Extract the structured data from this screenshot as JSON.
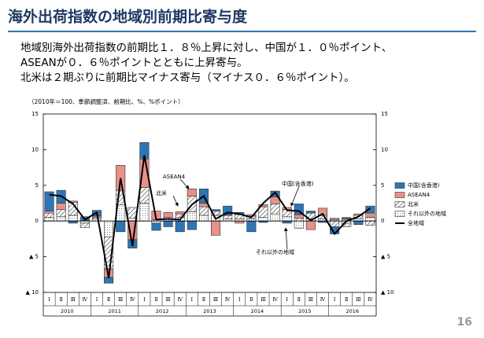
{
  "header": {
    "title": "海外出荷指数の地域別前期比寄与度",
    "lines": [
      "地域別海外出荷指数の前期比１．８％上昇に対し、中国が１．０％ポイント、",
      "ASEANが０．６％ポイントとともに上昇寄与。",
      "北米は２期ぶりに前期比マイナス寄与（マイナス０．６％ポイント）。"
    ]
  },
  "page_number": "16",
  "chart_data": {
    "type": "stacked-bar-line",
    "note": "（2010年＝100、季節調整済、前期比、%、%ポイント）",
    "categories": [
      "Ⅰ",
      "Ⅱ",
      "Ⅲ",
      "Ⅳ",
      "Ⅰ",
      "Ⅱ",
      "Ⅲ",
      "Ⅳ",
      "Ⅰ",
      "Ⅱ",
      "Ⅲ",
      "Ⅳ",
      "Ⅰ",
      "Ⅱ",
      "Ⅲ",
      "Ⅳ",
      "Ⅰ",
      "Ⅱ",
      "Ⅲ",
      "Ⅳ",
      "Ⅰ",
      "Ⅱ",
      "Ⅲ",
      "Ⅳ",
      "Ⅰ",
      "Ⅱ",
      "Ⅲ",
      "Ⅳ"
    ],
    "years": [
      "2010",
      "2011",
      "2012",
      "2013",
      "2014",
      "2015",
      "2016"
    ],
    "series": [
      {
        "name": "中国(含香港)",
        "color": "#2e75b6",
        "values": [
          2.7,
          1.8,
          -0.3,
          0.5,
          0.8,
          -0.8,
          -1.5,
          -1.2,
          2.3,
          -1.0,
          -0.8,
          -1.5,
          -1.2,
          2.0,
          0.2,
          1.2,
          0.3,
          -1.5,
          -0.2,
          0.8,
          -0.3,
          1.5,
          0.3,
          -0.2,
          -1.0,
          0.2,
          -0.5,
          1.0
        ]
      },
      {
        "name": "ASEAN4",
        "color": "#e8908a",
        "values": [
          0.3,
          0.9,
          0.2,
          0.1,
          0.2,
          -1.2,
          3.5,
          -2.6,
          4.0,
          1.2,
          0.7,
          0.3,
          1.0,
          0.5,
          -2.0,
          0.1,
          -0.3,
          0.2,
          0.3,
          1.0,
          0.3,
          0.5,
          -1.2,
          1.0,
          0.2,
          0.3,
          0.2,
          0.6
        ]
      },
      {
        "name": "北米",
        "color": "#ffffff",
        "pattern": "hatch",
        "values": [
          0.6,
          1.0,
          1.8,
          -0.6,
          0.2,
          -4.5,
          2.0,
          1.5,
          2.2,
          0.2,
          0.2,
          0.5,
          2.2,
          1.2,
          0.6,
          0.5,
          0.6,
          0.4,
          1.5,
          1.4,
          1.0,
          0.4,
          0.8,
          0.5,
          -0.8,
          -0.5,
          0.5,
          -0.6
        ]
      },
      {
        "name": "それ以外の地域",
        "color": "#ffffff",
        "pattern": "dots",
        "values": [
          0.5,
          0.6,
          0.8,
          -0.3,
          0.3,
          -2.2,
          2.3,
          0.4,
          2.5,
          -0.3,
          0.3,
          0.5,
          1.3,
          0.8,
          0.8,
          0.3,
          0.3,
          0.3,
          0.5,
          1.0,
          0.6,
          -1.0,
          0.3,
          0.3,
          0.2,
          -0.3,
          0.3,
          0.5
        ]
      },
      {
        "name": "全地域",
        "color": "#000000",
        "kind": "line",
        "values": [
          3.7,
          3.5,
          2.4,
          0.2,
          1.2,
          -8.0,
          6.0,
          -3.5,
          9.2,
          0.2,
          0.3,
          0.2,
          2.3,
          3.5,
          0.3,
          1.2,
          1.0,
          0.5,
          2.5,
          4.0,
          1.5,
          1.4,
          0.1,
          1.0,
          -1.8,
          0.0,
          0.6,
          1.8
        ]
      }
    ],
    "ylim": [
      -10,
      15
    ],
    "yticks": [
      15,
      10,
      5,
      0,
      {
        "value": -5,
        "label": "▲ 5"
      },
      {
        "value": -10,
        "label": "▲ 10"
      }
    ],
    "annotations": [
      "ASEAN4",
      "北米",
      "中国(含香港)",
      "それ以外の地域"
    ],
    "legend": "right"
  }
}
